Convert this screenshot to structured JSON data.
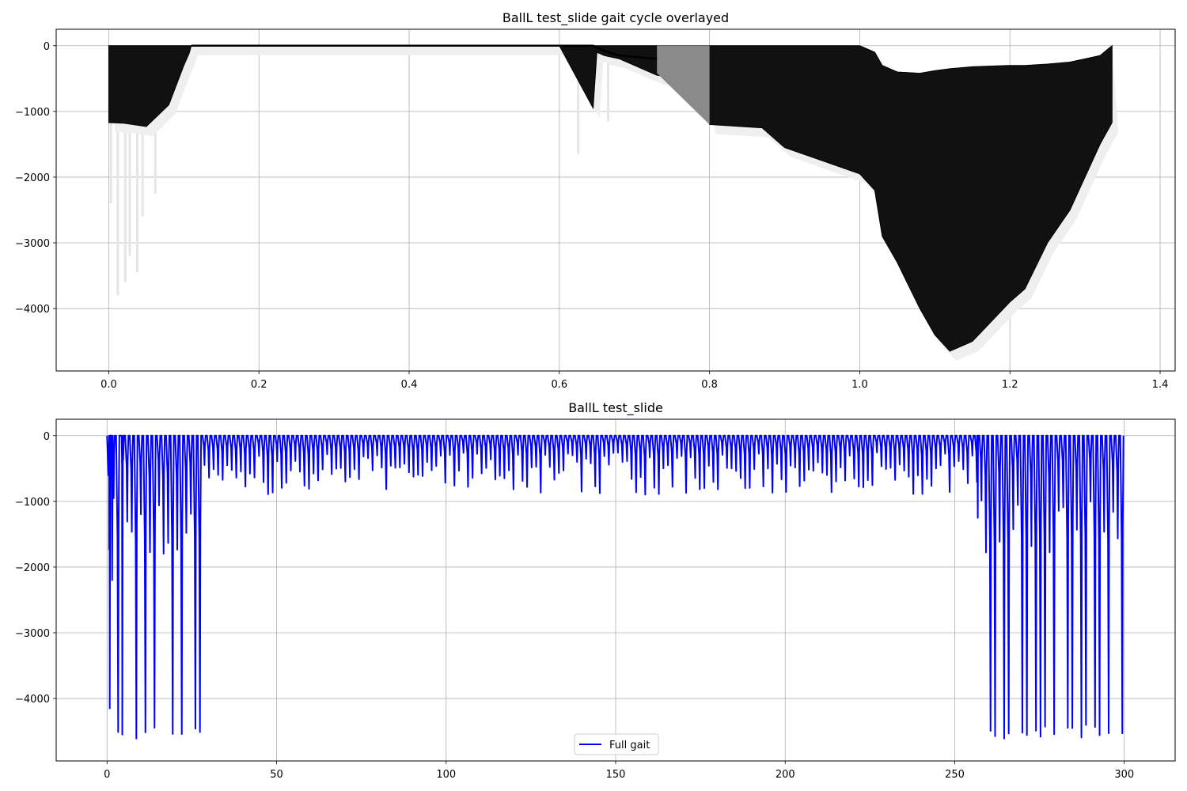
{
  "chart_data": [
    {
      "type": "line",
      "title": "BallL test_slide gait cycle overlayed",
      "xlabel": "",
      "ylabel": "",
      "xlim": [
        -0.07,
        1.42
      ],
      "ylim": [
        -4950,
        250
      ],
      "xticks": [
        0.0,
        0.2,
        0.4,
        0.6,
        0.8,
        1.0,
        1.2,
        1.4
      ],
      "xtick_labels": [
        "0.0",
        "0.2",
        "0.4",
        "0.6",
        "0.8",
        "1.0",
        "1.2",
        "1.4"
      ],
      "yticks": [
        0,
        -1000,
        -2000,
        -3000,
        -4000
      ],
      "ytick_labels": [
        "0",
        "−1000",
        "−2000",
        "−3000",
        "−4000"
      ],
      "grid": true,
      "line_color": "#000000",
      "envelope": {
        "x": [
          0.0,
          0.02,
          0.05,
          0.08,
          0.1,
          0.107,
          0.11,
          0.6,
          0.645,
          0.65,
          0.66,
          0.68,
          0.73,
          0.79,
          0.8,
          0.87,
          0.9,
          0.95,
          1.0,
          1.02,
          1.03,
          1.05,
          1.08,
          1.1,
          1.12,
          1.15,
          1.2,
          1.22,
          1.25,
          1.28,
          1.3,
          1.32,
          1.336
        ],
        "min": [
          -1170,
          -1180,
          -1230,
          -900,
          -300,
          -120,
          0,
          0,
          -950,
          -100,
          -150,
          -200,
          -450,
          -550,
          -1200,
          -1250,
          -1550,
          -1750,
          -1950,
          -2200,
          -2900,
          -3300,
          -4000,
          -4400,
          -4650,
          -4500,
          -3900,
          -3700,
          -3000,
          -2500,
          -2000,
          -1500,
          -1170
        ],
        "max": [
          0,
          0,
          0,
          0,
          0,
          0,
          0,
          0,
          0,
          0,
          0,
          0,
          0,
          0,
          0,
          0,
          0,
          0,
          0,
          -100,
          -300,
          -400,
          -420,
          -380,
          -350,
          -320,
          -300,
          -300,
          -280,
          -250,
          -200,
          -150,
          0
        ]
      }
    },
    {
      "type": "line",
      "title": "BallL test_slide",
      "xlabel": "",
      "ylabel": "",
      "xlim": [
        -15,
        315
      ],
      "ylim": [
        -4950,
        250
      ],
      "xticks": [
        0,
        50,
        100,
        150,
        200,
        250,
        300
      ],
      "xtick_labels": [
        "0",
        "50",
        "100",
        "150",
        "200",
        "250",
        "300"
      ],
      "yticks": [
        0,
        -1000,
        -2000,
        -3000,
        -4000
      ],
      "ytick_labels": [
        "0",
        "−1000",
        "−2000",
        "−3000",
        "−4000"
      ],
      "grid": true,
      "legend": {
        "label": "Full gait",
        "color": "#0000ff",
        "position": "lower center"
      },
      "series": [
        {
          "name": "Full gait",
          "color": "#0000ff",
          "x_range": [
            0,
            300
          ],
          "cycle_period": 1.34,
          "deep_segments": [
            [
              0,
              27
            ],
            [
              256.5,
              300
            ]
          ],
          "deep_min": -4650,
          "shallow_min": -900,
          "notable_minima": [
            {
              "x": 0.8,
              "y": -4150
            },
            {
              "x": 1.5,
              "y": -2200
            },
            {
              "x": 4.5,
              "y": -4550
            },
            {
              "x": 256.8,
              "y": -1250
            }
          ]
        }
      ]
    }
  ]
}
